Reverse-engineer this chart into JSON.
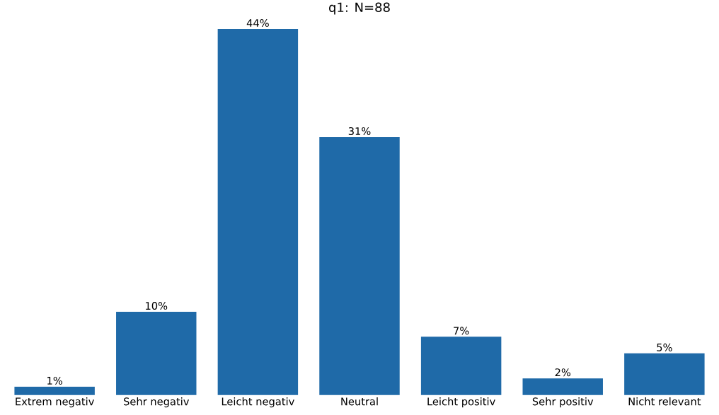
{
  "chart_data": {
    "type": "bar",
    "title": "q1: N=88",
    "categories": [
      "Extrem negativ",
      "Sehr negativ",
      "Leicht negativ",
      "Neutral",
      "Leicht positiv",
      "Sehr positiv",
      "Nicht relevant"
    ],
    "values": [
      1,
      10,
      44,
      31,
      7,
      2,
      5
    ],
    "value_labels": [
      "1%",
      "10%",
      "44%",
      "31%",
      "7%",
      "2%",
      "5%"
    ],
    "color": "#1f6aa8"
  }
}
